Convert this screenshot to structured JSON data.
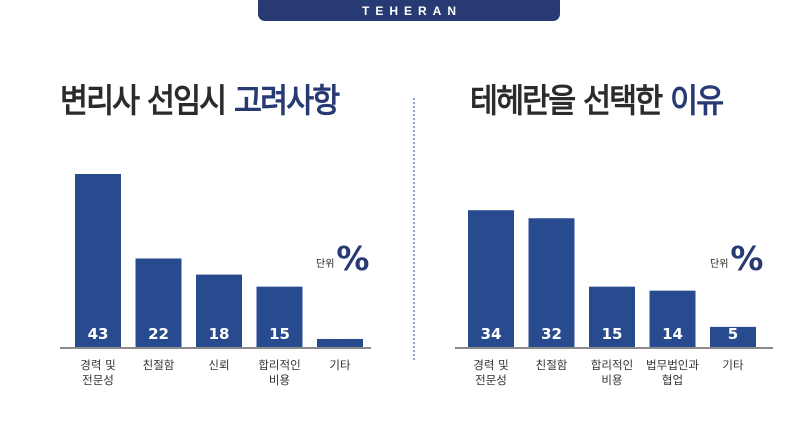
{
  "banner": {
    "text": "TEHERAN"
  },
  "left": {
    "title_main": "변리사 선임시 ",
    "title_accent": "고려사항",
    "unit_label": "단위",
    "unit_symbol": "%"
  },
  "right": {
    "title_main": "테헤란을 선택한 ",
    "title_accent": "이유",
    "unit_label": "단위",
    "unit_symbol": "%"
  },
  "colors": {
    "bar": "#284b8f",
    "accent": "#283a73",
    "axis": "#8a8a8a"
  },
  "chart_data": [
    {
      "type": "bar",
      "title": "변리사 선임시 고려사항",
      "unit": "%",
      "categories": [
        [
          "경력 및",
          "전문성"
        ],
        [
          "친절함"
        ],
        [
          "신뢰"
        ],
        [
          "합리적인",
          "비용"
        ],
        [
          "기타"
        ]
      ],
      "values": [
        43,
        22,
        18,
        15,
        2
      ],
      "ylim": [
        0,
        45
      ]
    },
    {
      "type": "bar",
      "title": "테헤란을 선택한 이유",
      "unit": "%",
      "categories": [
        [
          "경력 및",
          "전문성"
        ],
        [
          "친절함"
        ],
        [
          "합리적인",
          "비용"
        ],
        [
          "법무법인과",
          "협업"
        ],
        [
          "기타"
        ]
      ],
      "values": [
        34,
        32,
        15,
        14,
        5
      ],
      "ylim": [
        0,
        45
      ]
    }
  ]
}
